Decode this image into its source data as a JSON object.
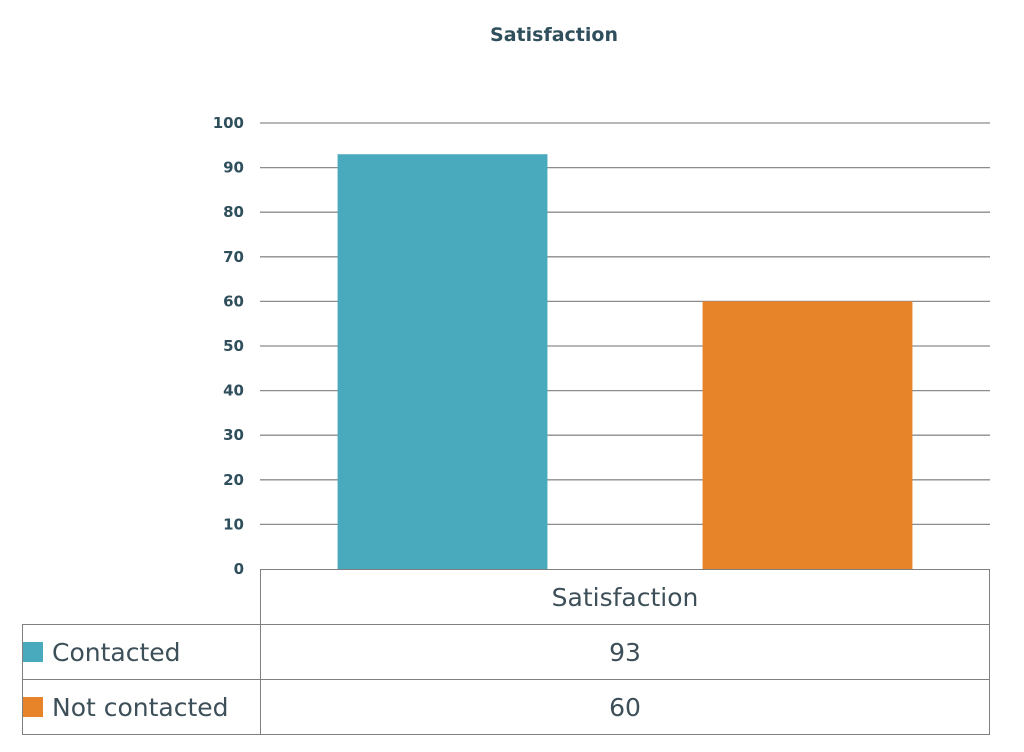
{
  "chart_data": {
    "type": "bar",
    "title": "Satisfaction",
    "categories": [
      "Satisfaction"
    ],
    "series": [
      {
        "name": "Contacted",
        "values": [
          93
        ],
        "color": "#4aaabd"
      },
      {
        "name": "Not contacted",
        "values": [
          60
        ],
        "color": "#e78328"
      }
    ],
    "ylim": [
      0,
      100
    ],
    "yticks": [
      0,
      10,
      20,
      30,
      40,
      50,
      60,
      70,
      80,
      90,
      100
    ],
    "grid": true,
    "legend": "data table below chart"
  }
}
